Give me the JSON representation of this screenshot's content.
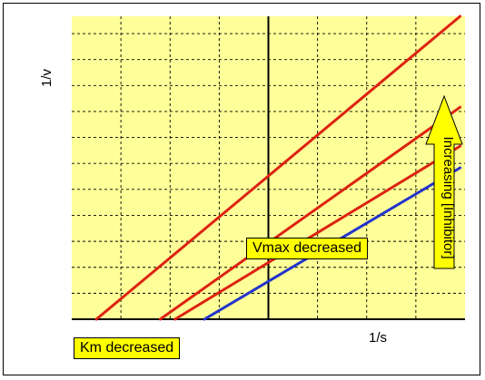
{
  "chart_data": {
    "type": "line",
    "title": "",
    "xlabel": "1/s",
    "ylabel": "1/v",
    "xlim": [
      -4,
      4
    ],
    "ylim": [
      0,
      7
    ],
    "grid": true,
    "x_tick_step": 1,
    "y_tick_step": 0.6,
    "series": [
      {
        "color": "#dd2211",
        "x": [
          -3.5,
          3.9
        ],
        "y": [
          0.0,
          7.0
        ]
      },
      {
        "color": "#dd2211",
        "x": [
          -2.2,
          3.9
        ],
        "y": [
          0.0,
          4.9
        ]
      },
      {
        "color": "#dd2211",
        "x": [
          -1.9,
          3.9
        ],
        "y": [
          0.0,
          4.0
        ]
      },
      {
        "color": "#2233cc",
        "x": [
          -1.3,
          3.9
        ],
        "y": [
          0.0,
          3.5
        ]
      }
    ],
    "annotations": {
      "vmax": "Vmax decreased",
      "km": "Km decreased",
      "inhibitor_arrow": "Increasing [Inhibitor]"
    },
    "colors": {
      "plot_background": "#ffff99",
      "annotation_background": "#ffff00",
      "arrow_fill": "#ffff00",
      "grid": "#000000"
    }
  }
}
